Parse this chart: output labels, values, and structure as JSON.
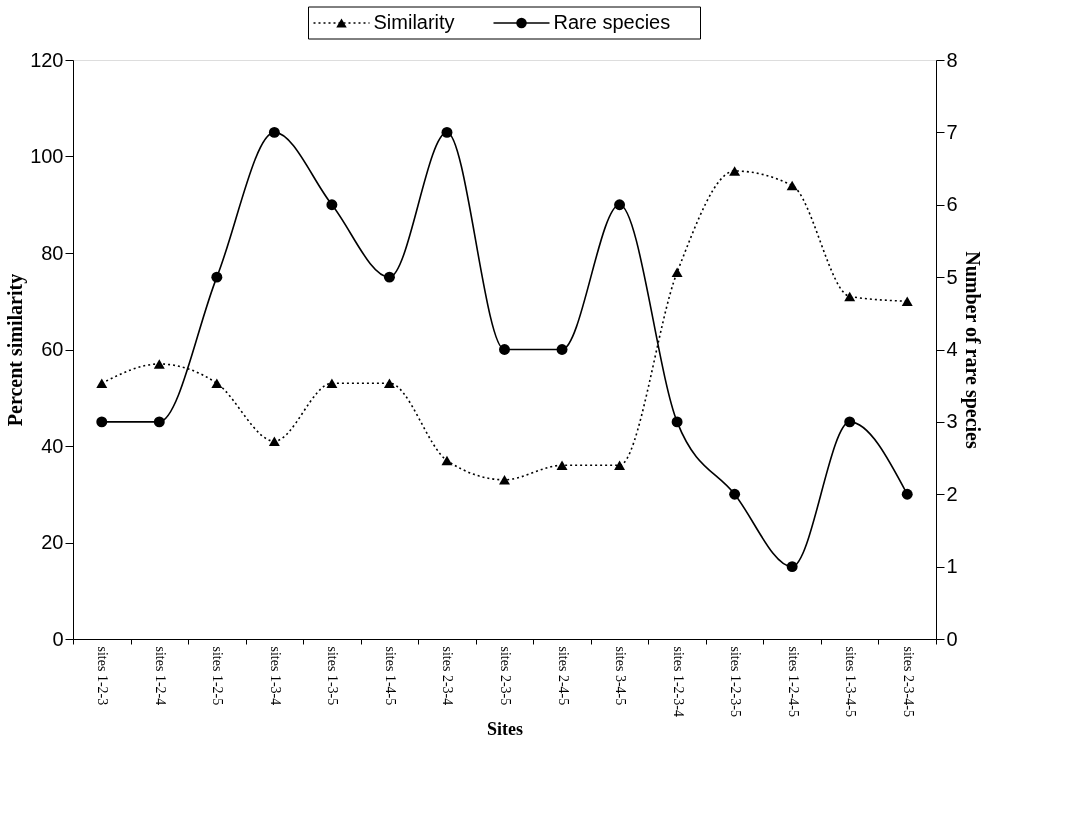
{
  "chart_data": {
    "type": "line",
    "xlabel": "Sites",
    "ylabel": "Percent similarity",
    "y2label": "Number of rare species",
    "categories": [
      "sites 1-2-3",
      "sites 1-2-4",
      "sites 1-2-5",
      "sites 1-3-4",
      "sites 1-3-5",
      "sites 1-4-5",
      "sites 2-3-4",
      "sites 2-3-5",
      "sites 2-4-5",
      "sites 3-4-5",
      "sites 1-2-3-4",
      "sites 1-2-3-5",
      "sites 1-2-4-5",
      "sites 1-3-4-5",
      "sites 2-3-4-5"
    ],
    "series": [
      {
        "name": "Similarity",
        "color": "#000000",
        "marker": "triangle",
        "line_style": "dotted",
        "values": [
          53,
          57,
          53,
          41,
          53,
          53,
          37,
          33,
          36,
          36,
          76,
          97,
          94,
          71,
          70
        ]
      },
      {
        "name": "Rare species",
        "color": "#000000",
        "marker": "circle",
        "line_style": "solid",
        "axis": "y2",
        "values": [
          3,
          3,
          5,
          7,
          6,
          5,
          7,
          4,
          4,
          6,
          3,
          2,
          1,
          3,
          2
        ]
      }
    ],
    "ylim": [
      0,
      120
    ],
    "yticks": [
      0,
      20,
      40,
      60,
      80,
      100,
      120
    ],
    "y2lim": [
      0,
      8
    ],
    "y2ticks": [
      0,
      1,
      2,
      3,
      4,
      5,
      6,
      7,
      8
    ],
    "grid": false,
    "legend": "top"
  }
}
